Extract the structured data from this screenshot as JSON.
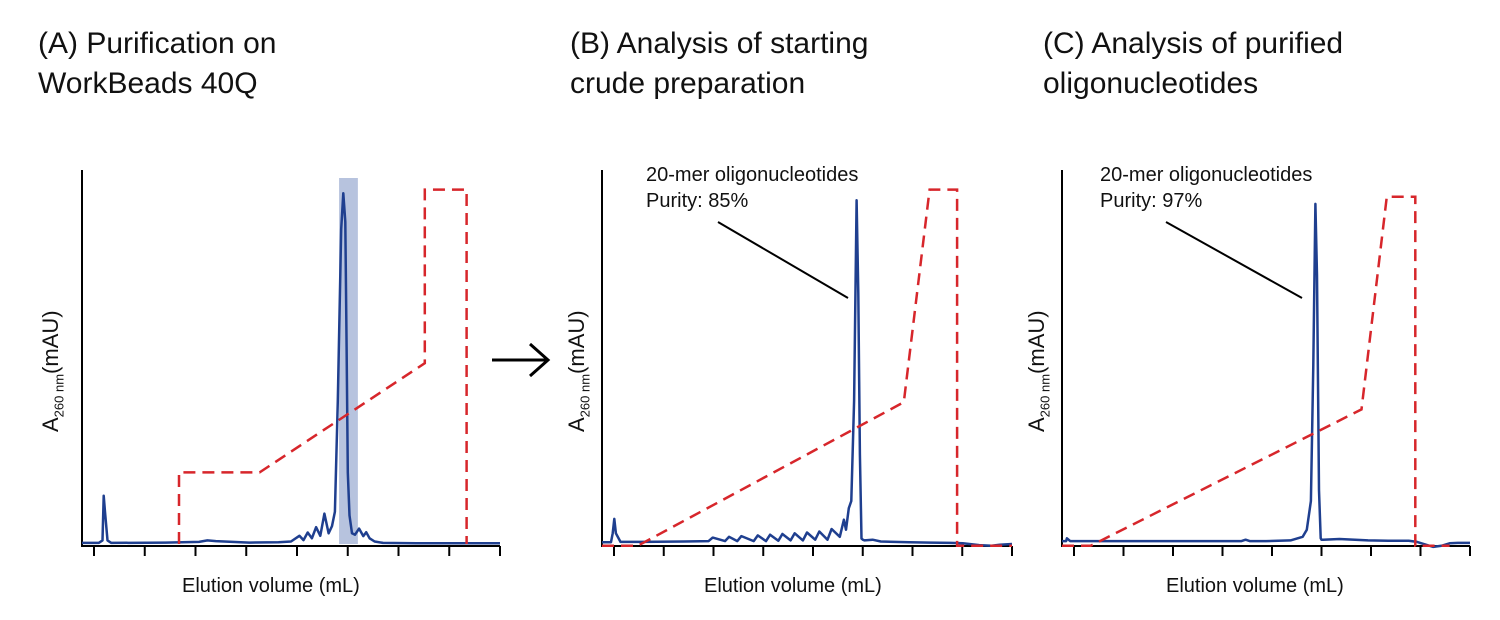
{
  "colors": {
    "trace": "#1F3F8F",
    "gradient": "#D7262B",
    "highlight": "#AAB8D8",
    "axis": "#000000"
  },
  "panels": [
    {
      "title_line1": "(A) Purification on",
      "title_line2": "WorkBeads 40Q",
      "ylabel_main": "A",
      "ylabel_sub": "260 nm",
      "ylabel_unit": "(mAU)",
      "xlabel": "Elution volume (mL)"
    },
    {
      "title_line1": "(B) Analysis of starting",
      "title_line2": "crude preparation",
      "ylabel_main": "A",
      "ylabel_sub": "260 nm",
      "ylabel_unit": "(mAU)",
      "xlabel": "Elution volume (mL)",
      "annotation_line1": "20-mer oligonucleotides",
      "annotation_line2": "Purity: 85%"
    },
    {
      "title_line1": "(C) Analysis of purified",
      "title_line2": "oligonucleotides",
      "ylabel_main": "A",
      "ylabel_sub": "260 nm",
      "ylabel_unit": "(mAU)",
      "xlabel": "Elution volume (mL)",
      "annotation_line1": "20-mer oligonucleotides",
      "annotation_line2": "Purity: 97%"
    }
  ],
  "arrow_symbol": "→",
  "chart_data": [
    {
      "type": "line",
      "title": "(A) Purification on WorkBeads 40Q",
      "xlabel": "Elution volume (mL)",
      "ylabel": "A260 nm (mAU)",
      "xlim": [
        0,
        100
      ],
      "ylim": [
        0,
        100
      ],
      "grid": false,
      "x_ticks": 8,
      "highlight_x_range": [
        61.5,
        66
      ],
      "series": [
        {
          "role": "absorbance trace",
          "x": [
            0,
            4,
            4.9,
            5.2,
            5.5,
            6.1,
            7,
            20,
            28,
            30,
            32,
            40,
            47,
            50,
            52,
            53,
            54,
            55,
            56,
            57,
            58,
            59,
            59.8,
            60.5,
            61.2,
            62,
            62.5,
            63,
            63.3,
            63.6,
            64,
            64.6,
            65.3,
            66.3,
            67.3,
            68,
            68.8,
            70,
            72,
            80,
            90,
            100
          ],
          "y": [
            0.3,
            0.3,
            1,
            13.5,
            9,
            1,
            0.3,
            0.4,
            0.6,
            1,
            0.8,
            0.4,
            0.5,
            0.7,
            2.3,
            1.1,
            3.2,
            1.6,
            4.7,
            2.3,
            8.5,
            3,
            5,
            9,
            40,
            88,
            98,
            90,
            55,
            20,
            8,
            3,
            2.6,
            4.3,
            2.2,
            3.3,
            1.6,
            0.7,
            0.3,
            0.2,
            0.2,
            0.2
          ]
        },
        {
          "role": "gradient (dashed)",
          "x": [
            23.2,
            23.2,
            42.5,
            82,
            82,
            92,
            92
          ],
          "y": [
            0,
            20,
            20,
            50.5,
            99,
            99,
            0
          ]
        }
      ]
    },
    {
      "type": "line",
      "title": "(B) Analysis of starting crude preparation",
      "xlabel": "Elution volume (mL)",
      "ylabel": "A260 nm (mAU)",
      "xlim": [
        0,
        100
      ],
      "ylim": [
        0,
        100
      ],
      "grid": false,
      "x_ticks": 8,
      "annotation": "20-mer oligonucleotides Purity: 85%",
      "series": [
        {
          "role": "absorbance trace",
          "x": [
            0,
            2.2,
            2.6,
            3,
            3.4,
            4.5,
            10,
            20,
            26,
            27,
            30,
            31,
            33,
            34,
            37,
            38,
            40,
            41,
            43,
            44,
            46,
            47,
            49,
            50,
            52,
            53,
            55,
            56,
            58,
            59,
            59.5,
            60.2,
            60.8,
            61.5,
            62.1,
            62.5,
            62.9,
            63.3,
            63.6,
            64,
            66,
            68,
            75,
            80,
            85,
            88,
            92,
            95,
            97,
            100
          ],
          "y": [
            0.5,
            0.5,
            3,
            7,
            3,
            0.6,
            0.6,
            0.7,
            0.8,
            1.8,
            0.8,
            2,
            0.8,
            2.2,
            0.8,
            2.4,
            0.8,
            2.6,
            0.9,
            2.8,
            1,
            3,
            1,
            3.2,
            1.2,
            3.5,
            1.2,
            4.2,
            2,
            6.8,
            4,
            10,
            12,
            40,
            96,
            70,
            25,
            1.5,
            1.2,
            1,
            1.2,
            0.7,
            0.5,
            0.4,
            0.3,
            0.2,
            -0.3,
            -0.5,
            -0.2,
            0
          ]
        },
        {
          "role": "gradient (dashed)",
          "x": [
            0,
            8.7,
            73.6,
            79.9,
            86.6,
            86.6,
            100
          ],
          "y": [
            -0.5,
            -0.5,
            39.6,
            99,
            99,
            -0.5,
            -0.5
          ]
        }
      ]
    },
    {
      "type": "line",
      "title": "(C) Analysis of purified oligonucleotides",
      "xlabel": "Elution volume (mL)",
      "ylabel": "A260 nm (mAU)",
      "xlim": [
        0,
        100
      ],
      "ylim": [
        0,
        100
      ],
      "grid": false,
      "x_ticks": 8,
      "annotation": "20-mer oligonucleotides Purity: 97%",
      "series": [
        {
          "role": "absorbance trace",
          "x": [
            0,
            1,
            1.2,
            2,
            10,
            20,
            30,
            40,
            44,
            45,
            46,
            50,
            56,
            59,
            60,
            61,
            61.6,
            62.1,
            62.5,
            63,
            63.4,
            63.6,
            64,
            68,
            75,
            80,
            85,
            87,
            91,
            93,
            95,
            97,
            100
          ],
          "y": [
            0.8,
            0.8,
            1.6,
            0.8,
            0.8,
            0.8,
            0.8,
            0.8,
            0.8,
            1.2,
            0.8,
            0.8,
            1,
            2,
            4,
            12,
            50,
            95,
            75,
            15,
            1.6,
            1.2,
            1.2,
            1.4,
            1,
            0.9,
            0.9,
            0.6,
            -0.8,
            -0.5,
            0.2,
            0.3,
            0.3
          ]
        },
        {
          "role": "gradient (dashed)",
          "x": [
            0,
            7,
            73.4,
            79.6,
            86.6,
            86.6,
            95
          ],
          "y": [
            -0.5,
            -0.5,
            37.6,
            97,
            97,
            -0.5,
            -0.5
          ]
        }
      ]
    }
  ]
}
